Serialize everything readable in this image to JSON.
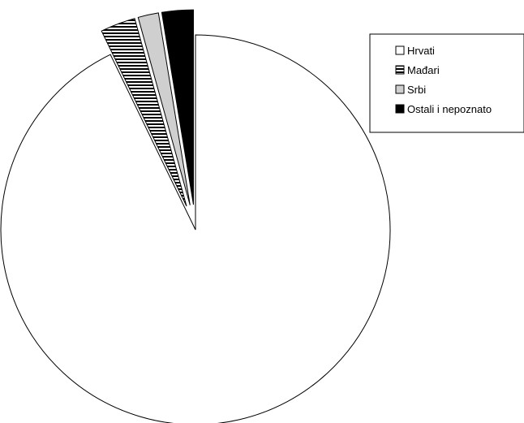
{
  "chart_data": {
    "type": "pie",
    "title": "",
    "categories": [
      "Hrvati",
      "Mađari",
      "Srbi",
      "Ostali i nepoznato"
    ],
    "values": [
      92.8,
      2.9,
      1.7,
      2.6
    ],
    "unit": "%",
    "start_angle_deg": 0,
    "direction": "clockwise",
    "exploded_slices": [
      "Mađari",
      "Srbi",
      "Ostali i nepoznato"
    ],
    "legend_placement": "top-right",
    "legend": [
      {
        "label": "Hrvati",
        "fill": "#ffffff",
        "pattern": "none"
      },
      {
        "label": "Mađari",
        "fill": "#ffffff",
        "pattern": "horizontal-stripes"
      },
      {
        "label": "Srbi",
        "fill": "#cfcfcf",
        "pattern": "none"
      },
      {
        "label": "Ostali i nepoznato",
        "fill": "#000000",
        "pattern": "none"
      }
    ]
  }
}
